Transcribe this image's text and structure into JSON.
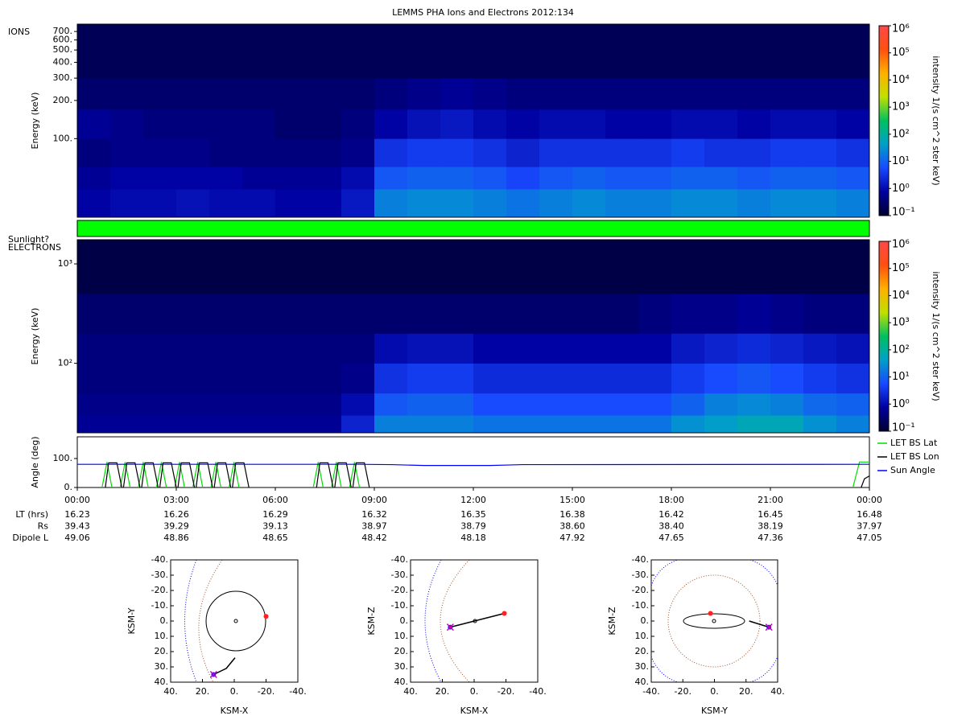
{
  "title": "LEMMS PHA Ions and Electrons  2012:134",
  "chart_data": [
    {
      "type": "heatmap",
      "label": "IONS",
      "ylabel": "Energy (keV)",
      "log_y": true,
      "xlim": [
        0,
        24
      ],
      "ylim": [
        24,
        800
      ],
      "yticks": [
        {
          "value": 100,
          "label": "100."
        },
        {
          "value": 200,
          "label": "200."
        },
        {
          "value": 300,
          "label": "300."
        },
        {
          "value": 400,
          "label": "400."
        },
        {
          "value": 500,
          "label": "500."
        },
        {
          "value": 600,
          "label": "600."
        },
        {
          "value": 700,
          "label": "700."
        }
      ],
      "x_bins": [
        0,
        1,
        2,
        3,
        4,
        5,
        6,
        7,
        8,
        9,
        10,
        11,
        12,
        13,
        14,
        15,
        16,
        17,
        18,
        19,
        20,
        21,
        22,
        23,
        24
      ],
      "bins": [
        24,
        40,
        60,
        100,
        170,
        300,
        800
      ],
      "values": [
        [
          0.8,
          1,
          1,
          1.2,
          1,
          1,
          0.8,
          0.8,
          1.5,
          20,
          25,
          25,
          20,
          15,
          20,
          25,
          20,
          20,
          25,
          25,
          20,
          25,
          25,
          20
        ],
        [
          0.6,
          0.8,
          0.8,
          0.8,
          0.8,
          0.6,
          0.6,
          0.6,
          1,
          8,
          10,
          10,
          8,
          5,
          8,
          10,
          8,
          8,
          10,
          10,
          8,
          10,
          10,
          8
        ],
        [
          0.4,
          0.5,
          0.5,
          0.5,
          0.4,
          0.4,
          0.4,
          0.4,
          0.5,
          3,
          4,
          4,
          3,
          2,
          3,
          3,
          3,
          3,
          4,
          3,
          3,
          4,
          4,
          3
        ],
        [
          0.6,
          0.5,
          0.4,
          0.4,
          0.4,
          0.4,
          0.3,
          0.3,
          0.4,
          0.8,
          1.2,
          1.5,
          1,
          0.8,
          1,
          1,
          0.8,
          0.8,
          1,
          1,
          0.8,
          1,
          1,
          0.8
        ],
        [
          0.3,
          0.3,
          0.3,
          0.3,
          0.3,
          0.3,
          0.3,
          0.3,
          0.3,
          0.4,
          0.5,
          0.6,
          0.5,
          0.4,
          0.4,
          0.4,
          0.4,
          0.4,
          0.4,
          0.4,
          0.4,
          0.4,
          0.4,
          0.4
        ],
        [
          0.2,
          0.2,
          0.2,
          0.2,
          0.2,
          0.2,
          0.2,
          0.2,
          0.2,
          0.2,
          0.2,
          0.2,
          0.2,
          0.2,
          0.2,
          0.2,
          0.2,
          0.2,
          0.2,
          0.2,
          0.2,
          0.2,
          0.2,
          0.2
        ]
      ],
      "colorbar": {
        "label": "intensity 1/(s cm^2 ster keV)",
        "log": true,
        "lim": [
          0.1,
          1000000
        ],
        "ticks": [
          {
            "value": 0.1,
            "label": "10⁻¹"
          },
          {
            "value": 1,
            "label": "10⁰"
          },
          {
            "value": 10,
            "label": "10¹"
          },
          {
            "value": 100,
            "label": "10²"
          },
          {
            "value": 1000,
            "label": "10³"
          },
          {
            "value": 10000,
            "label": "10⁴"
          },
          {
            "value": 100000,
            "label": "10⁵"
          },
          {
            "value": 1000000,
            "label": "10⁶"
          }
        ],
        "colors": [
          "#000030",
          "#0000a0",
          "#1848ff",
          "#00a0c8",
          "#00c060",
          "#c0e000",
          "#ffb000",
          "#ff5010",
          "#ff4848"
        ]
      }
    },
    {
      "type": "status",
      "label": "Sunlight?",
      "xlim": [
        0,
        24
      ],
      "intervals": [
        [
          0,
          24
        ]
      ],
      "color": "#00ff00"
    },
    {
      "type": "heatmap",
      "label": "ELECTRONS",
      "ylabel": "Energy (keV)",
      "log_y": true,
      "xlim": [
        0,
        24
      ],
      "ylim": [
        20,
        1750
      ],
      "yticks": [
        {
          "value": 100,
          "label": "10²"
        },
        {
          "value": 1000,
          "label": "10³"
        }
      ],
      "x_bins": [
        0,
        1,
        2,
        3,
        4,
        5,
        6,
        7,
        8,
        9,
        10,
        11,
        12,
        13,
        14,
        15,
        16,
        17,
        18,
        19,
        20,
        21,
        22,
        23,
        24
      ],
      "bins": [
        20,
        30,
        50,
        100,
        200,
        500,
        1750
      ],
      "values": [
        [
          0.6,
          0.6,
          0.6,
          0.6,
          0.6,
          0.6,
          0.6,
          0.6,
          2,
          20,
          20,
          20,
          15,
          15,
          15,
          15,
          15,
          15,
          30,
          40,
          60,
          60,
          30,
          20
        ],
        [
          0.5,
          0.5,
          0.5,
          0.5,
          0.5,
          0.5,
          0.5,
          0.5,
          1,
          8,
          10,
          10,
          6,
          6,
          6,
          6,
          6,
          6,
          10,
          20,
          25,
          20,
          12,
          10
        ],
        [
          0.4,
          0.4,
          0.4,
          0.4,
          0.4,
          0.4,
          0.4,
          0.4,
          0.5,
          3,
          4,
          4,
          2.5,
          2.5,
          2.5,
          2.5,
          2.5,
          2.5,
          4,
          6,
          8,
          6,
          4,
          3
        ],
        [
          0.4,
          0.4,
          0.4,
          0.4,
          0.4,
          0.4,
          0.4,
          0.4,
          0.4,
          1,
          1.2,
          1.2,
          0.8,
          0.8,
          0.8,
          0.8,
          0.8,
          0.8,
          1.5,
          2,
          2.5,
          2,
          1.5,
          1.2
        ],
        [
          0.3,
          0.3,
          0.3,
          0.3,
          0.3,
          0.3,
          0.3,
          0.3,
          0.3,
          0.3,
          0.3,
          0.3,
          0.3,
          0.3,
          0.3,
          0.3,
          0.3,
          0.4,
          0.5,
          0.5,
          0.6,
          0.5,
          0.4,
          0.4
        ],
        [
          0.15,
          0.15,
          0.15,
          0.15,
          0.15,
          0.15,
          0.15,
          0.15,
          0.15,
          0.15,
          0.15,
          0.15,
          0.15,
          0.15,
          0.15,
          0.15,
          0.15,
          0.15,
          0.15,
          0.15,
          0.15,
          0.15,
          0.15,
          0.15
        ]
      ],
      "colorbar": {
        "label": "intensity 1/(s cm^2 ster keV)",
        "log": true,
        "lim": [
          0.1,
          1000000
        ],
        "ticks": [
          {
            "value": 0.1,
            "label": "10⁻¹"
          },
          {
            "value": 1,
            "label": "10⁰"
          },
          {
            "value": 10,
            "label": "10¹"
          },
          {
            "value": 100,
            "label": "10²"
          },
          {
            "value": 1000,
            "label": "10³"
          },
          {
            "value": 10000,
            "label": "10⁴"
          },
          {
            "value": 100000,
            "label": "10⁵"
          },
          {
            "value": 1000000,
            "label": "10⁶"
          }
        ],
        "colors": [
          "#000030",
          "#0000a0",
          "#1848ff",
          "#00a0c8",
          "#00c060",
          "#c0e000",
          "#ffb000",
          "#ff5010",
          "#ff4848"
        ]
      }
    },
    {
      "type": "line",
      "ylabel": "Angle (deg)",
      "legend": "outside-right",
      "xlim": [
        0,
        24
      ],
      "ylim": [
        0,
        175
      ],
      "xticks": [
        {
          "value": 0,
          "label": "00:00"
        },
        {
          "value": 3,
          "label": "03:00"
        },
        {
          "value": 6,
          "label": "06:00"
        },
        {
          "value": 9,
          "label": "09:00"
        },
        {
          "value": 12,
          "label": "12:00"
        },
        {
          "value": 15,
          "label": "15:00"
        },
        {
          "value": 18,
          "label": "18:00"
        },
        {
          "value": 21,
          "label": "21:00"
        },
        {
          "value": 24,
          "label": "00:00"
        }
      ],
      "yticks": [
        {
          "value": 0,
          "label": "0."
        },
        {
          "value": 100,
          "label": "100."
        }
      ],
      "series": [
        {
          "name": "LET BS Lat",
          "color": "#00dd00",
          "x": [
            0.75,
            0.9,
            1.05,
            1.1,
            1.3,
            1.45,
            1.6,
            1.65,
            1.85,
            2.0,
            2.15,
            2.2,
            2.4,
            2.55,
            2.7,
            2.75,
            2.95,
            3.1,
            3.25,
            3.3,
            3.5,
            3.65,
            3.8,
            3.85,
            4.05,
            4.2,
            4.35,
            4.4,
            4.6,
            4.75,
            4.9,
            4.95,
            7.15,
            7.3,
            7.45,
            7.5,
            7.7,
            7.85,
            8.0,
            8.05,
            8.25,
            8.4,
            8.55,
            8.6,
            23.5,
            23.7,
            24
          ],
          "values": [
            0,
            88,
            0,
            null,
            0,
            88,
            0,
            null,
            0,
            88,
            0,
            null,
            0,
            88,
            0,
            null,
            0,
            88,
            0,
            null,
            0,
            88,
            0,
            null,
            0,
            88,
            0,
            null,
            0,
            88,
            0,
            null,
            0,
            88,
            0,
            null,
            0,
            88,
            0,
            null,
            0,
            88,
            0,
            null,
            0,
            88,
            88
          ]
        },
        {
          "name": "LET BS Lon",
          "color": "#000000",
          "x": [
            0.85,
            0.95,
            1.2,
            1.35,
            1.4,
            1.4,
            1.5,
            1.75,
            1.9,
            1.95,
            1.95,
            2.05,
            2.3,
            2.45,
            2.5,
            2.5,
            2.6,
            2.85,
            3.0,
            3.05,
            3.05,
            3.15,
            3.4,
            3.55,
            3.6,
            3.6,
            3.7,
            3.95,
            4.1,
            4.15,
            4.15,
            4.25,
            4.5,
            4.65,
            4.7,
            4.7,
            4.8,
            5.05,
            5.2,
            5.25,
            7.25,
            7.35,
            7.6,
            7.75,
            7.8,
            7.8,
            7.9,
            8.15,
            8.3,
            8.35,
            8.35,
            8.45,
            8.7,
            8.85,
            8.9,
            23.75,
            23.85,
            24
          ],
          "values": [
            0,
            85,
            85,
            0,
            null,
            0,
            85,
            85,
            0,
            null,
            0,
            85,
            85,
            0,
            null,
            0,
            85,
            85,
            0,
            null,
            0,
            85,
            85,
            0,
            null,
            0,
            85,
            85,
            0,
            null,
            0,
            85,
            85,
            0,
            null,
            0,
            85,
            85,
            0,
            null,
            0,
            85,
            85,
            0,
            null,
            0,
            85,
            85,
            0,
            null,
            0,
            85,
            85,
            0,
            null,
            0,
            30,
            40
          ]
        },
        {
          "name": "Sun Angle",
          "color": "#0000ff",
          "x": [
            0,
            8.5,
            9.5,
            10.5,
            12.5,
            13.5,
            24
          ],
          "values": [
            80,
            80,
            79,
            76,
            76,
            79,
            80
          ]
        }
      ]
    },
    {
      "type": "orbit",
      "xlabel": "KSM-X",
      "ylabel": "KSM-Y",
      "xlim": [
        40,
        -40
      ],
      "ylim": [
        -40,
        40
      ],
      "xticks": [
        {
          "value": 40,
          "label": "40."
        },
        {
          "value": 20,
          "label": "20."
        },
        {
          "value": 0,
          "label": "0."
        },
        {
          "value": -20,
          "label": "-20."
        },
        {
          "value": -40,
          "label": "-40."
        }
      ],
      "yticks": [
        {
          "value": -40,
          "label": "-40."
        },
        {
          "value": -30,
          "label": "-30."
        },
        {
          "value": -20,
          "label": "-20."
        },
        {
          "value": -10,
          "label": "-10."
        },
        {
          "value": 0,
          "label": "0."
        },
        {
          "value": 10,
          "label": "10."
        },
        {
          "value": 20,
          "label": "20."
        },
        {
          "value": 30,
          "label": "30."
        },
        {
          "value": 40,
          "label": "40."
        }
      ],
      "track": {
        "x": [
          -0.5,
          5,
          13
        ],
        "y": [
          24,
          31,
          35
        ]
      },
      "moon": {
        "x": -20,
        "y": -3
      },
      "spacecraft": {
        "x": 13,
        "y": 35
      }
    },
    {
      "type": "orbit",
      "xlabel": "KSM-X",
      "ylabel": "KSM-Z",
      "xlim": [
        40,
        -40
      ],
      "ylim": [
        -40,
        40
      ],
      "xticks": [
        {
          "value": 40,
          "label": "40."
        },
        {
          "value": 20,
          "label": "20."
        },
        {
          "value": 0,
          "label": "0."
        },
        {
          "value": -20,
          "label": "-20."
        },
        {
          "value": -40,
          "label": "-40."
        }
      ],
      "yticks": [
        {
          "value": -40,
          "label": "-40."
        },
        {
          "value": -30,
          "label": "-30."
        },
        {
          "value": -20,
          "label": "-20."
        },
        {
          "value": -10,
          "label": "-10."
        },
        {
          "value": 0,
          "label": "0."
        },
        {
          "value": 10,
          "label": "10."
        },
        {
          "value": 20,
          "label": "20."
        },
        {
          "value": 30,
          "label": "30."
        },
        {
          "value": 40,
          "label": "40."
        }
      ],
      "track": {
        "x": [
          -19,
          15
        ],
        "y": [
          -5,
          4
        ]
      },
      "moon": {
        "x": -19,
        "y": -5
      },
      "spacecraft": {
        "x": 15,
        "y": 4
      }
    },
    {
      "type": "orbit",
      "xlabel": "KSM-Y",
      "ylabel": "KSM-Z",
      "xlim": [
        -40,
        40
      ],
      "ylim": [
        -40,
        40
      ],
      "xticks": [
        {
          "value": -40,
          "label": "-40."
        },
        {
          "value": -20,
          "label": "-20."
        },
        {
          "value": 0,
          "label": "0."
        },
        {
          "value": 20,
          "label": "20."
        },
        {
          "value": 40,
          "label": "40."
        }
      ],
      "yticks": [
        {
          "value": -40,
          "label": "-40."
        },
        {
          "value": -30,
          "label": "-30."
        },
        {
          "value": -20,
          "label": "-20."
        },
        {
          "value": -10,
          "label": "-10."
        },
        {
          "value": 0,
          "label": "0."
        },
        {
          "value": 10,
          "label": "10."
        },
        {
          "value": 20,
          "label": "20."
        },
        {
          "value": 30,
          "label": "30."
        },
        {
          "value": 40,
          "label": "40."
        }
      ],
      "track": {
        "x": [
          22,
          34.5
        ],
        "y": [
          0,
          4
        ]
      },
      "moon": {
        "x": -2.5,
        "y": -5
      },
      "spacecraft": {
        "x": 34.5,
        "y": 4
      }
    }
  ],
  "ephemeris": {
    "rows": [
      {
        "name": "LT (hrs)",
        "values": [
          "16.23",
          "16.26",
          "16.29",
          "16.32",
          "16.35",
          "16.38",
          "16.42",
          "16.45",
          "16.48"
        ]
      },
      {
        "name": "Rs",
        "values": [
          "39.43",
          "39.29",
          "39.13",
          "38.97",
          "38.79",
          "38.60",
          "38.40",
          "38.19",
          "37.97"
        ]
      },
      {
        "name": "Dipole L",
        "values": [
          "49.06",
          "48.86",
          "48.65",
          "48.42",
          "48.18",
          "47.92",
          "47.65",
          "47.36",
          "47.05"
        ]
      }
    ]
  }
}
